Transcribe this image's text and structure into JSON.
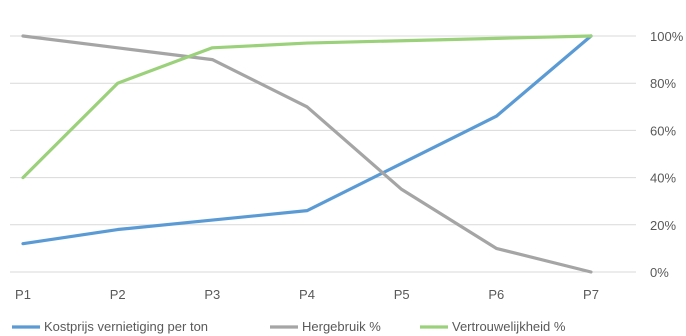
{
  "chart_data": {
    "type": "line",
    "categories": [
      "P1",
      "P2",
      "P3",
      "P4",
      "P5",
      "P6",
      "P7"
    ],
    "y_axis": {
      "position": "right",
      "ylim": [
        0,
        100
      ],
      "ticks": [
        0,
        20,
        40,
        60,
        80,
        100
      ],
      "tick_labels": [
        "0%",
        "20%",
        "40%",
        "60%",
        "80%",
        "100%"
      ]
    },
    "grid": true,
    "legend_position": "bottom",
    "series": [
      {
        "name": "Kostprijs vernietiging per ton",
        "color": "#5b9bd5",
        "values": [
          12,
          18,
          22,
          26,
          46,
          66,
          100
        ]
      },
      {
        "name": "Hergebruik %",
        "color": "#a5a5a5",
        "values": [
          100,
          95,
          90,
          70,
          35,
          10,
          0
        ]
      },
      {
        "name": "Vertrouwelijkheid %",
        "color": "#9bd17a",
        "values": [
          40,
          80,
          95,
          97,
          98,
          99,
          100
        ]
      }
    ]
  }
}
